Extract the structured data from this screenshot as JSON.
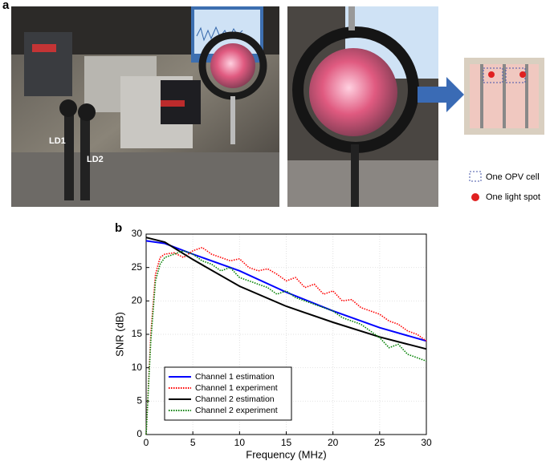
{
  "figure": {
    "panel_a": {
      "label": "a",
      "photo_labels": [
        "LD1",
        "LD2"
      ],
      "legend": [
        "One OPV cell",
        "One light spot"
      ]
    },
    "panel_b": {
      "label": "b"
    }
  },
  "chart_data": {
    "type": "line",
    "xlabel": "Frequency (MHz)",
    "ylabel": "SNR (dB)",
    "xlim": [
      0,
      30
    ],
    "ylim": [
      0,
      30
    ],
    "xticks": [
      0,
      5,
      10,
      15,
      20,
      25,
      30
    ],
    "yticks": [
      0,
      5,
      10,
      15,
      20,
      25,
      30
    ],
    "grid": true,
    "legend": "lower left",
    "series": [
      {
        "name": "Channel 1 estimation",
        "color": "#0000ff",
        "linestyle": "solid",
        "x": [
          0,
          2,
          5,
          10,
          15,
          20,
          25,
          30
        ],
        "values": [
          29,
          28.6,
          27,
          24.5,
          21.3,
          18.5,
          16,
          14
        ]
      },
      {
        "name": "Channel 1 experiment",
        "color": "#ff0000",
        "linestyle": "dotted",
        "x": [
          0,
          0.5,
          1,
          1.5,
          2,
          3,
          4,
          5,
          6,
          7,
          8,
          9,
          10,
          11,
          12,
          13,
          14,
          15,
          16,
          17,
          18,
          19,
          20,
          21,
          22,
          23,
          24,
          25,
          26,
          27,
          28,
          29,
          30
        ],
        "values": [
          0,
          15,
          24,
          26.5,
          27,
          27.2,
          26.5,
          27.5,
          28,
          27,
          26.5,
          26,
          26.3,
          25,
          24.5,
          24.8,
          24,
          23,
          23.5,
          22,
          22.5,
          21,
          21.5,
          20,
          20.2,
          19,
          18.5,
          18,
          17,
          16.5,
          15.5,
          15,
          14
        ]
      },
      {
        "name": "Channel 2 estimation",
        "color": "#000000",
        "linestyle": "solid",
        "x": [
          0,
          2,
          5,
          10,
          15,
          20,
          25,
          30
        ],
        "values": [
          29.5,
          28.8,
          26.2,
          22.2,
          19.2,
          16.8,
          14.6,
          12.8
        ]
      },
      {
        "name": "Channel 2 experiment",
        "color": "#008000",
        "linestyle": "dotted",
        "x": [
          0,
          0.5,
          1,
          1.5,
          2,
          3,
          4,
          5,
          6,
          7,
          8,
          9,
          10,
          11,
          12,
          13,
          14,
          15,
          16,
          17,
          18,
          19,
          20,
          21,
          22,
          23,
          24,
          25,
          26,
          27,
          28,
          29,
          30
        ],
        "values": [
          0,
          14,
          23,
          25.5,
          26.5,
          27,
          27.5,
          27,
          26,
          25.5,
          24.5,
          25,
          23.5,
          23,
          22.5,
          22,
          21,
          21.5,
          20.5,
          20,
          19.5,
          19,
          18.5,
          17.5,
          17,
          16.5,
          15.5,
          14.5,
          13,
          13.5,
          12,
          11.5,
          11
        ]
      }
    ]
  }
}
